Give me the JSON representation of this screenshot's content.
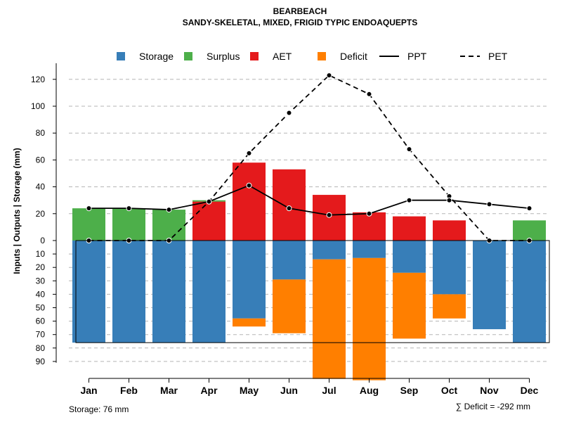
{
  "chart_data": {
    "type": "bar",
    "title": "BEARBEACH",
    "subtitle": "SANDY-SKELETAL, MIXED, FRIGID TYPIC ENDOAQUEPTS",
    "ylabel": "Inputs | Outputs | Storage    (mm)",
    "categories": [
      "Jan",
      "Feb",
      "Mar",
      "Apr",
      "May",
      "Jun",
      "Jul",
      "Aug",
      "Sep",
      "Oct",
      "Nov",
      "Dec"
    ],
    "y_ticks_positive": [
      0,
      20,
      40,
      60,
      80,
      100,
      120
    ],
    "y_ticks_negative": [
      10,
      20,
      30,
      40,
      50,
      60,
      70,
      80,
      90
    ],
    "ylim": [
      -95,
      132
    ],
    "storage_capacity": 76,
    "series": [
      {
        "name": "Storage",
        "color": "#377EB8",
        "direction": "down",
        "values": [
          76,
          76,
          76,
          76,
          58,
          29,
          14,
          13,
          24,
          40,
          66,
          76
        ]
      },
      {
        "name": "Deficit",
        "color": "#FF7F00",
        "direction": "down",
        "values": [
          0,
          0,
          0,
          0,
          6,
          40,
          89,
          91,
          49,
          18,
          0,
          0
        ]
      },
      {
        "name": "AET",
        "color": "#E41A1C",
        "direction": "up",
        "values": [
          0,
          0,
          0,
          29,
          58,
          53,
          34,
          21,
          18,
          15,
          0,
          0
        ]
      },
      {
        "name": "Surplus",
        "color": "#4DAF4A",
        "direction": "up",
        "values": [
          24,
          24,
          23,
          1,
          0,
          0,
          0,
          0,
          0,
          0,
          0,
          15
        ]
      },
      {
        "name": "PPT",
        "type": "line",
        "style": "solid",
        "values": [
          24,
          24,
          23,
          29,
          41,
          24,
          19,
          20,
          30,
          30,
          27,
          24
        ]
      },
      {
        "name": "PET",
        "type": "line",
        "style": "dashed",
        "values": [
          0,
          0,
          0,
          29,
          65,
          95,
          123,
          109,
          68,
          33,
          0,
          0
        ]
      }
    ],
    "legend": {
      "placement": "top",
      "items": [
        {
          "label": "Storage",
          "kind": "box",
          "color": "#377EB8"
        },
        {
          "label": "Surplus",
          "kind": "box",
          "color": "#4DAF4A"
        },
        {
          "label": "AET",
          "kind": "box",
          "color": "#E41A1C"
        },
        {
          "label": "Deficit",
          "kind": "box",
          "color": "#FF7F00"
        },
        {
          "label": "PPT",
          "kind": "line",
          "style": "solid"
        },
        {
          "label": "PET",
          "kind": "line",
          "style": "dashed"
        }
      ]
    },
    "annotations": {
      "storage_note": "Storage: 76 mm",
      "deficit_note": "∑ Deficit = -292 mm"
    },
    "grid": true
  }
}
